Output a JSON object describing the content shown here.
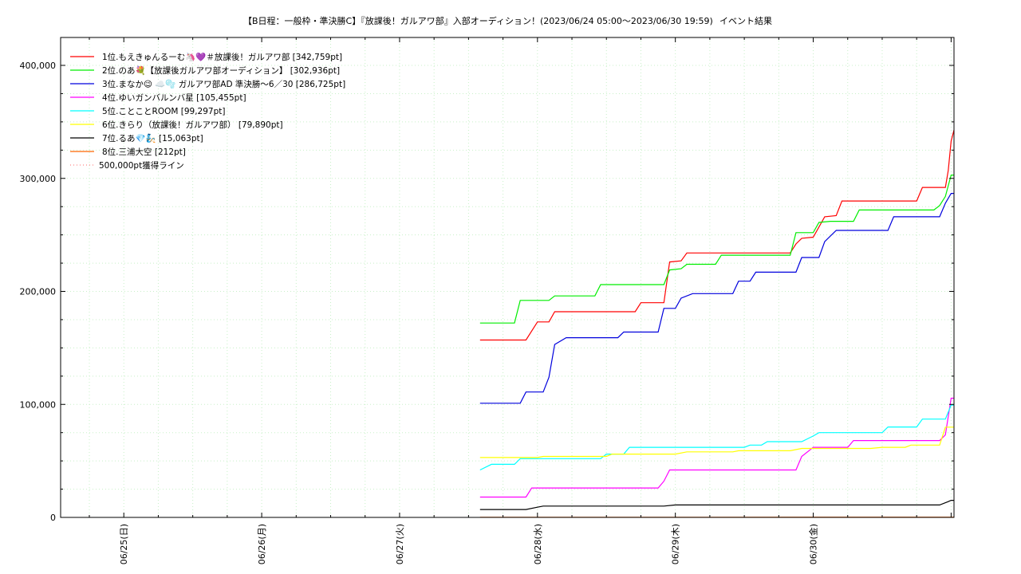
{
  "chart_data": {
    "type": "line",
    "title": "【B日程：一般枠・準決勝C】『放課後！ガルアワ部』入部オーディション！(2023/06/24 05:00〜2023/06/30 19:59)",
    "subtitle": "イベント結果",
    "xlabel": "",
    "ylabel": "",
    "x_type": "datetime",
    "xlim": [
      "2023-06-24 13:00",
      "2023-07-01 00:30"
    ],
    "ylim": [
      0,
      400000
    ],
    "y_ticks": [
      0,
      100000,
      200000,
      300000,
      400000
    ],
    "y_tick_labels": [
      "0",
      "100,000",
      "200,000",
      "300,000",
      "400,000"
    ],
    "x_ticks": [
      "2023-06-25 00:00",
      "2023-06-26 00:00",
      "2023-06-27 00:00",
      "2023-06-28 00:00",
      "2023-06-29 00:00",
      "2023-06-30 00:00"
    ],
    "x_tick_labels": [
      "06/25(日)",
      "06/26(月)",
      "06/27(火)",
      "06/28(水)",
      "06/29(木)",
      "06/30(金)"
    ],
    "grid": true,
    "legend_position": "top-left",
    "series": [
      {
        "name": "1位.もえきゅんるーむ🦄💜＃放課後！ガルアワ部 [342,759pt]",
        "color": "#ff0000",
        "style": "solid",
        "points": [
          [
            "2023-06-27 14:00",
            157000
          ],
          [
            "2023-06-27 22:00",
            157000
          ],
          [
            "2023-06-28 00:00",
            173000
          ],
          [
            "2023-06-28 02:00",
            173000
          ],
          [
            "2023-06-28 03:00",
            182000
          ],
          [
            "2023-06-28 17:00",
            182000
          ],
          [
            "2023-06-28 18:00",
            190000
          ],
          [
            "2023-06-28 22:00",
            190000
          ],
          [
            "2023-06-28 23:00",
            226000
          ],
          [
            "2023-06-29 01:00",
            227000
          ],
          [
            "2023-06-29 02:00",
            234000
          ],
          [
            "2023-06-29 20:00",
            234000
          ],
          [
            "2023-06-29 21:00",
            242000
          ],
          [
            "2023-06-29 22:00",
            247000
          ],
          [
            "2023-06-30 00:00",
            248000
          ],
          [
            "2023-06-30 02:00",
            266000
          ],
          [
            "2023-06-30 04:00",
            267000
          ],
          [
            "2023-06-30 05:00",
            280000
          ],
          [
            "2023-06-30 18:00",
            280000
          ],
          [
            "2023-06-30 19:00",
            292000
          ],
          [
            "2023-06-30 23:00",
            292000
          ],
          [
            "2023-06-30 23:30",
            307000
          ],
          [
            "2023-07-01 00:00",
            333000
          ],
          [
            "2023-07-01 00:30",
            342759
          ]
        ]
      },
      {
        "name": "2位.のあ💐【放課後ガルアワ部オーディション】 [302,936pt]",
        "color": "#00ee00",
        "style": "solid",
        "points": [
          [
            "2023-06-27 14:00",
            172000
          ],
          [
            "2023-06-27 20:00",
            172000
          ],
          [
            "2023-06-27 21:00",
            192000
          ],
          [
            "2023-06-28 02:00",
            192000
          ],
          [
            "2023-06-28 03:00",
            196000
          ],
          [
            "2023-06-28 10:00",
            196000
          ],
          [
            "2023-06-28 11:00",
            206000
          ],
          [
            "2023-06-28 22:00",
            206000
          ],
          [
            "2023-06-28 23:00",
            219000
          ],
          [
            "2023-06-29 01:00",
            220000
          ],
          [
            "2023-06-29 02:00",
            224000
          ],
          [
            "2023-06-29 07:00",
            224000
          ],
          [
            "2023-06-29 08:00",
            232000
          ],
          [
            "2023-06-29 20:00",
            232000
          ],
          [
            "2023-06-29 21:00",
            252000
          ],
          [
            "2023-06-30 00:00",
            252000
          ],
          [
            "2023-06-30 01:00",
            261000
          ],
          [
            "2023-06-30 03:00",
            262000
          ],
          [
            "2023-06-30 07:00",
            262000
          ],
          [
            "2023-06-30 08:00",
            272000
          ],
          [
            "2023-06-30 21:00",
            272000
          ],
          [
            "2023-06-30 22:00",
            276000
          ],
          [
            "2023-06-30 23:00",
            284000
          ],
          [
            "2023-07-01 00:00",
            302936
          ],
          [
            "2023-07-01 00:30",
            302936
          ]
        ]
      },
      {
        "name": "3位.まなか😉 ☁️🫧     ガルアワ部AD 準決勝〜6／30 [286,725pt]",
        "color": "#0000dd",
        "style": "solid",
        "points": [
          [
            "2023-06-27 14:00",
            101000
          ],
          [
            "2023-06-27 21:00",
            101000
          ],
          [
            "2023-06-27 22:00",
            111000
          ],
          [
            "2023-06-28 01:00",
            111000
          ],
          [
            "2023-06-28 02:00",
            124000
          ],
          [
            "2023-06-28 03:00",
            153000
          ],
          [
            "2023-06-28 05:00",
            159000
          ],
          [
            "2023-06-28 14:00",
            159000
          ],
          [
            "2023-06-28 15:00",
            164000
          ],
          [
            "2023-06-28 21:00",
            164000
          ],
          [
            "2023-06-28 22:00",
            185000
          ],
          [
            "2023-06-29 00:00",
            185000
          ],
          [
            "2023-06-29 01:00",
            194000
          ],
          [
            "2023-06-29 03:00",
            198000
          ],
          [
            "2023-06-29 10:00",
            198000
          ],
          [
            "2023-06-29 11:00",
            209000
          ],
          [
            "2023-06-29 13:00",
            209000
          ],
          [
            "2023-06-29 14:00",
            217000
          ],
          [
            "2023-06-29 21:00",
            217000
          ],
          [
            "2023-06-29 22:00",
            230000
          ],
          [
            "2023-06-30 01:00",
            230000
          ],
          [
            "2023-06-30 02:00",
            244000
          ],
          [
            "2023-06-30 04:00",
            254000
          ],
          [
            "2023-06-30 13:00",
            254000
          ],
          [
            "2023-06-30 14:00",
            266000
          ],
          [
            "2023-06-30 22:00",
            266000
          ],
          [
            "2023-06-30 23:00",
            278000
          ],
          [
            "2023-07-01 00:00",
            286725
          ],
          [
            "2023-07-01 00:30",
            286725
          ]
        ]
      },
      {
        "name": "4位.ゆいガンバルンバ星 [105,455pt]",
        "color": "#ff00ff",
        "style": "solid",
        "points": [
          [
            "2023-06-27 14:00",
            18000
          ],
          [
            "2023-06-27 22:00",
            18000
          ],
          [
            "2023-06-27 23:00",
            26000
          ],
          [
            "2023-06-28 21:00",
            26000
          ],
          [
            "2023-06-28 22:00",
            32000
          ],
          [
            "2023-06-28 23:00",
            42000
          ],
          [
            "2023-06-29 21:00",
            42000
          ],
          [
            "2023-06-29 22:00",
            54000
          ],
          [
            "2023-06-30 00:00",
            62000
          ],
          [
            "2023-06-30 06:00",
            62000
          ],
          [
            "2023-06-30 07:00",
            68000
          ],
          [
            "2023-06-30 22:00",
            68000
          ],
          [
            "2023-06-30 23:00",
            73000
          ],
          [
            "2023-07-01 00:00",
            105455
          ],
          [
            "2023-07-01 00:30",
            105455
          ]
        ]
      },
      {
        "name": "5位.ことことROOM [99,297pt]",
        "color": "#00ffff",
        "style": "solid",
        "points": [
          [
            "2023-06-27 14:00",
            42000
          ],
          [
            "2023-06-27 16:00",
            47000
          ],
          [
            "2023-06-27 20:00",
            47000
          ],
          [
            "2023-06-27 21:00",
            52000
          ],
          [
            "2023-06-28 11:00",
            52000
          ],
          [
            "2023-06-28 12:00",
            56000
          ],
          [
            "2023-06-28 15:00",
            56000
          ],
          [
            "2023-06-28 16:00",
            62000
          ],
          [
            "2023-06-29 12:00",
            62000
          ],
          [
            "2023-06-29 13:00",
            64000
          ],
          [
            "2023-06-29 15:00",
            64000
          ],
          [
            "2023-06-29 16:00",
            67000
          ],
          [
            "2023-06-29 22:00",
            67000
          ],
          [
            "2023-06-30 00:00",
            72000
          ],
          [
            "2023-06-30 01:00",
            75000
          ],
          [
            "2023-06-30 12:00",
            75000
          ],
          [
            "2023-06-30 13:00",
            80000
          ],
          [
            "2023-06-30 18:00",
            80000
          ],
          [
            "2023-06-30 19:00",
            87000
          ],
          [
            "2023-06-30 23:00",
            87000
          ],
          [
            "2023-07-01 00:00",
            99297
          ],
          [
            "2023-07-01 00:30",
            99297
          ]
        ]
      },
      {
        "name": "6位.きらり（放課後！ガルアワ部） [79,890pt]",
        "color": "#ffff00",
        "style": "solid",
        "points": [
          [
            "2023-06-27 14:00",
            53000
          ],
          [
            "2023-06-28 00:00",
            53000
          ],
          [
            "2023-06-28 01:00",
            54000
          ],
          [
            "2023-06-28 12:00",
            54000
          ],
          [
            "2023-06-28 13:00",
            56000
          ],
          [
            "2023-06-29 00:00",
            56000
          ],
          [
            "2023-06-29 02:00",
            58000
          ],
          [
            "2023-06-29 10:00",
            58000
          ],
          [
            "2023-06-29 11:00",
            59000
          ],
          [
            "2023-06-29 20:00",
            59000
          ],
          [
            "2023-06-29 22:00",
            61000
          ],
          [
            "2023-06-30 10:00",
            61000
          ],
          [
            "2023-06-30 12:00",
            62000
          ],
          [
            "2023-06-30 16:00",
            62000
          ],
          [
            "2023-06-30 17:00",
            64000
          ],
          [
            "2023-06-30 22:00",
            64000
          ],
          [
            "2023-06-30 23:00",
            79890
          ],
          [
            "2023-07-01 00:30",
            79890
          ]
        ]
      },
      {
        "name": "7位.るあ💎🧞 [15,063pt]",
        "color": "#000000",
        "style": "solid",
        "points": [
          [
            "2023-06-27 14:00",
            7000
          ],
          [
            "2023-06-27 22:00",
            7000
          ],
          [
            "2023-06-28 00:00",
            9000
          ],
          [
            "2023-06-28 01:00",
            10000
          ],
          [
            "2023-06-28 22:00",
            10000
          ],
          [
            "2023-06-29 00:00",
            11000
          ],
          [
            "2023-06-30 22:00",
            11000
          ],
          [
            "2023-06-30 23:30",
            14000
          ],
          [
            "2023-07-01 00:00",
            15063
          ],
          [
            "2023-07-01 00:30",
            15063
          ]
        ]
      },
      {
        "name": "8位.三浦大空 [212pt]",
        "color": "#ff6600",
        "style": "solid",
        "points": [
          [
            "2023-06-27 14:00",
            100
          ],
          [
            "2023-07-01 00:30",
            212
          ]
        ]
      },
      {
        "name": "500,000pt獲得ライン",
        "color": "#ff8888",
        "style": "dotted",
        "points": []
      }
    ]
  }
}
